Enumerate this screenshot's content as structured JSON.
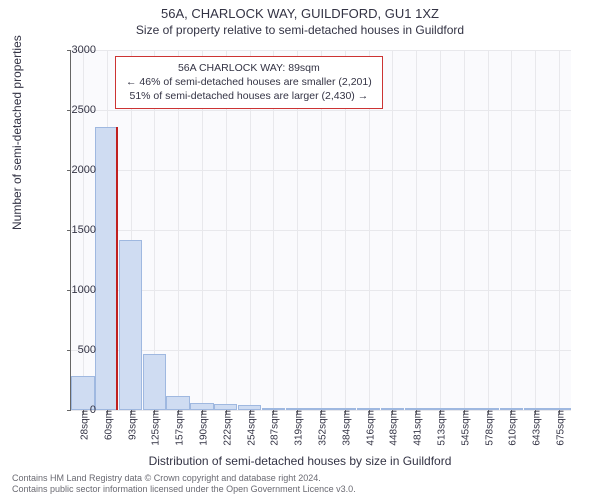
{
  "header": {
    "title": "56A, CHARLOCK WAY, GUILDFORD, GU1 1XZ",
    "subtitle": "Size of property relative to semi-detached houses in Guildford"
  },
  "chart": {
    "type": "histogram",
    "background_color": "#fafafd",
    "grid_color": "#e8e8ec",
    "bar_fill": "#cfdcf2",
    "bar_stroke": "#9fb8e0",
    "ylabel": "Number of semi-detached properties",
    "xlabel": "Distribution of semi-detached houses by size in Guildford",
    "ylim": [
      0,
      3000
    ],
    "yticks": [
      0,
      500,
      1000,
      1500,
      2000,
      2500,
      3000
    ],
    "xtick_labels": [
      "28sqm",
      "60sqm",
      "93sqm",
      "125sqm",
      "157sqm",
      "190sqm",
      "222sqm",
      "254sqm",
      "287sqm",
      "319sqm",
      "352sqm",
      "384sqm",
      "416sqm",
      "448sqm",
      "481sqm",
      "513sqm",
      "545sqm",
      "578sqm",
      "610sqm",
      "643sqm",
      "675sqm"
    ],
    "bars": [
      280,
      2360,
      1420,
      470,
      120,
      60,
      50,
      40,
      20,
      15,
      10,
      8,
      6,
      5,
      4,
      3,
      3,
      2,
      2,
      2,
      1
    ],
    "marker": {
      "bin_index": 1,
      "color": "#C02020"
    }
  },
  "annotation": {
    "line1": "56A CHARLOCK WAY: 89sqm",
    "line2": "← 46% of semi-detached houses are smaller (2,201)",
    "line3": "51% of semi-detached houses are larger (2,430) →",
    "border_color": "#cc3333"
  },
  "footer": {
    "line1": "Contains HM Land Registry data © Crown copyright and database right 2024.",
    "line2": "Contains public sector information licensed under the Open Government Licence v3.0."
  }
}
